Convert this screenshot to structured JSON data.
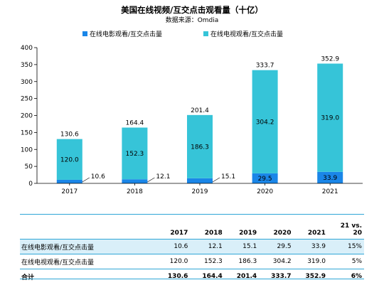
{
  "chart_data": {
    "type": "bar",
    "stacked": true,
    "title": "美国在线视频/互交点击观看量（十亿）",
    "subtitle": "数据来源：Omdia",
    "categories": [
      "2017",
      "2018",
      "2019",
      "2020",
      "2021"
    ],
    "series": [
      {
        "name": "在线电影观看/互交点击量",
        "color": "#1a86e8",
        "values": [
          10.6,
          12.1,
          15.1,
          29.5,
          33.9
        ]
      },
      {
        "name": "在线电视观看/互交点击量",
        "color": "#36c4d8",
        "values": [
          120.0,
          152.3,
          186.3,
          304.2,
          319.0
        ]
      }
    ],
    "totals": [
      130.6,
      164.4,
      201.4,
      333.7,
      352.9
    ],
    "movie_labels": [
      "10.6",
      "12.1",
      "15.1",
      "29.5",
      "33.9"
    ],
    "tv_labels": [
      "120.0",
      "152.3",
      "186.3",
      "304.2",
      "319.0"
    ],
    "total_labels": [
      "130.6",
      "164.4",
      "201.4",
      "333.7",
      "352.9"
    ],
    "yticks": [
      "0",
      "50",
      "100",
      "150",
      "200",
      "250",
      "300",
      "350",
      "400"
    ],
    "ylim": [
      0,
      400
    ],
    "legend_position": "top",
    "grid": false
  },
  "table": {
    "header": [
      "",
      "2017",
      "2018",
      "2019",
      "2020",
      "2021",
      "21 vs.",
      "20"
    ],
    "rows": [
      {
        "label": "在线电影观看/互交点击量",
        "values": [
          "10.6",
          "12.1",
          "15.1",
          "29.5",
          "33.9"
        ],
        "change": "15%"
      },
      {
        "label": "在线电视观看/互交点击量",
        "values": [
          "120.0",
          "152.3",
          "186.3",
          "304.2",
          "319.0"
        ],
        "change": "5%"
      },
      {
        "label": "合计",
        "values": [
          "130.6",
          "164.4",
          "201.4",
          "333.7",
          "352.9"
        ],
        "change": "6%"
      }
    ]
  }
}
